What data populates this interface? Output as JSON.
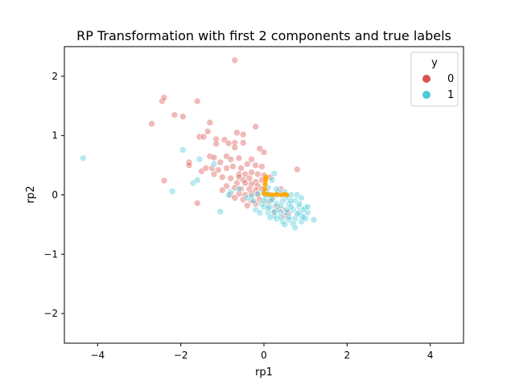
{
  "chart_data": {
    "type": "scatter",
    "title": "RP Transformation with first 2 components and true labels",
    "xlabel": "rp1",
    "ylabel": "rp2",
    "xlim": [
      -4.8,
      4.8
    ],
    "ylim": [
      -2.5,
      2.5
    ],
    "xticks": [
      -4,
      -2,
      0,
      2,
      4
    ],
    "yticks": [
      -2,
      -1,
      0,
      1,
      2
    ],
    "xtick_labels": [
      "−4",
      "−2",
      "0",
      "2",
      "4"
    ],
    "ytick_labels": [
      "−2",
      "−1",
      "0",
      "1",
      "2"
    ],
    "grid": false,
    "legend": {
      "title": "y",
      "placement": "top-right"
    },
    "series": [
      {
        "name": "0",
        "color": "#d9534f",
        "points": [
          [
            -0.7,
            2.27
          ],
          [
            -2.45,
            1.58
          ],
          [
            -2.4,
            1.64
          ],
          [
            -2.15,
            1.35
          ],
          [
            -1.95,
            1.32
          ],
          [
            -1.6,
            1.58
          ],
          [
            -2.7,
            1.2
          ],
          [
            -1.3,
            1.22
          ],
          [
            -1.35,
            1.07
          ],
          [
            -0.65,
            1.05
          ],
          [
            -0.5,
            1.02
          ],
          [
            -0.2,
            1.15
          ],
          [
            -1.55,
            0.98
          ],
          [
            -1.45,
            0.98
          ],
          [
            -1.15,
            0.94
          ],
          [
            -1.15,
            0.86
          ],
          [
            -0.95,
            0.93
          ],
          [
            -0.85,
            0.87
          ],
          [
            -0.7,
            0.88
          ],
          [
            -0.5,
            0.88
          ],
          [
            -0.7,
            0.8
          ],
          [
            -0.1,
            0.78
          ],
          [
            0.0,
            0.72
          ],
          [
            -1.3,
            0.65
          ],
          [
            -1.2,
            0.63
          ],
          [
            -0.9,
            0.65
          ],
          [
            -1.05,
            0.55
          ],
          [
            -0.8,
            0.6
          ],
          [
            -0.6,
            0.62
          ],
          [
            -0.3,
            0.6
          ],
          [
            -1.8,
            0.55
          ],
          [
            -1.8,
            0.5
          ],
          [
            -1.5,
            0.4
          ],
          [
            -1.4,
            0.45
          ],
          [
            -1.25,
            0.45
          ],
          [
            -1.1,
            0.42
          ],
          [
            -0.9,
            0.45
          ],
          [
            -0.75,
            0.48
          ],
          [
            -0.55,
            0.45
          ],
          [
            -0.4,
            0.52
          ],
          [
            -0.2,
            0.5
          ],
          [
            -0.05,
            0.48
          ],
          [
            -0.6,
            0.35
          ],
          [
            -0.45,
            0.35
          ],
          [
            -0.3,
            0.38
          ],
          [
            -0.15,
            0.35
          ],
          [
            0.0,
            0.33
          ],
          [
            0.15,
            0.3
          ],
          [
            -1.2,
            0.35
          ],
          [
            -1.0,
            0.3
          ],
          [
            -0.8,
            0.28
          ],
          [
            -0.6,
            0.3
          ],
          [
            -0.5,
            0.25
          ],
          [
            -0.35,
            0.28
          ],
          [
            -0.2,
            0.22
          ],
          [
            -0.05,
            0.25
          ],
          [
            -0.65,
            0.2
          ],
          [
            -0.45,
            0.2
          ],
          [
            -0.3,
            0.18
          ],
          [
            -0.15,
            0.15
          ],
          [
            -0.9,
            0.15
          ],
          [
            -0.7,
            0.12
          ],
          [
            -0.55,
            0.1
          ],
          [
            -0.35,
            0.1
          ],
          [
            -0.2,
            0.08
          ],
          [
            -0.05,
            0.1
          ],
          [
            -0.8,
            0.0
          ],
          [
            -0.6,
            0.02
          ],
          [
            -0.45,
            0.0
          ],
          [
            -0.3,
            0.02
          ],
          [
            -0.15,
            0.0
          ],
          [
            0.05,
            0.05
          ],
          [
            -0.5,
            -0.08
          ],
          [
            -0.3,
            -0.1
          ],
          [
            -0.1,
            -0.08
          ],
          [
            -0.4,
            -0.18
          ],
          [
            -0.2,
            -0.15
          ],
          [
            0.1,
            -0.12
          ],
          [
            0.3,
            -0.2
          ],
          [
            0.45,
            -0.25
          ],
          [
            0.6,
            -0.3
          ],
          [
            0.25,
            -0.3
          ],
          [
            0.5,
            -0.35
          ],
          [
            -1.6,
            -0.14
          ],
          [
            -2.4,
            0.24
          ],
          [
            0.8,
            0.43
          ],
          [
            -1.0,
            0.08
          ],
          [
            -0.7,
            -0.05
          ],
          [
            0.2,
            -0.05
          ],
          [
            0.4,
            0.1
          ]
        ]
      },
      {
        "name": "1",
        "color": "#4cc9d6",
        "points": [
          [
            -4.35,
            0.62
          ],
          [
            -1.95,
            0.76
          ],
          [
            -1.7,
            0.2
          ],
          [
            -1.6,
            0.25
          ],
          [
            -1.55,
            0.6
          ],
          [
            -2.2,
            0.06
          ],
          [
            -1.2,
            0.52
          ],
          [
            -1.05,
            -0.28
          ],
          [
            -0.8,
            0.05
          ],
          [
            -0.85,
            0.0
          ],
          [
            -0.6,
            0.1
          ],
          [
            -0.4,
            -0.05
          ],
          [
            -0.2,
            -0.25
          ],
          [
            0.25,
            0.36
          ],
          [
            0.2,
            0.25
          ],
          [
            0.1,
            0.12
          ],
          [
            0.0,
            0.05
          ],
          [
            0.05,
            -0.05
          ],
          [
            -0.05,
            -0.15
          ],
          [
            0.15,
            -0.1
          ],
          [
            0.3,
            0.0
          ],
          [
            0.35,
            0.05
          ],
          [
            0.5,
            0.05
          ],
          [
            0.55,
            -0.05
          ],
          [
            0.65,
            0.0
          ],
          [
            0.8,
            0.0
          ],
          [
            0.9,
            -0.05
          ],
          [
            0.75,
            -0.1
          ],
          [
            0.6,
            -0.15
          ],
          [
            0.45,
            -0.1
          ],
          [
            0.3,
            -0.15
          ],
          [
            0.15,
            -0.2
          ],
          [
            0.0,
            -0.2
          ],
          [
            -0.1,
            -0.3
          ],
          [
            0.1,
            -0.3
          ],
          [
            0.25,
            -0.35
          ],
          [
            0.4,
            -0.3
          ],
          [
            0.55,
            -0.3
          ],
          [
            0.7,
            -0.25
          ],
          [
            0.85,
            -0.2
          ],
          [
            1.0,
            -0.22
          ],
          [
            1.05,
            -0.3
          ],
          [
            0.9,
            -0.35
          ],
          [
            0.75,
            -0.4
          ],
          [
            0.6,
            -0.42
          ],
          [
            0.45,
            -0.45
          ],
          [
            0.3,
            -0.4
          ],
          [
            0.15,
            -0.38
          ],
          [
            0.5,
            -0.5
          ],
          [
            0.7,
            -0.48
          ],
          [
            0.9,
            -0.45
          ],
          [
            1.0,
            -0.4
          ],
          [
            1.2,
            -0.42
          ],
          [
            0.75,
            -0.55
          ],
          [
            0.85,
            -0.3
          ],
          [
            0.95,
            -0.25
          ],
          [
            0.65,
            -0.2
          ],
          [
            0.35,
            -0.25
          ],
          [
            0.2,
            -0.08
          ],
          [
            0.05,
            0.0
          ],
          [
            -0.15,
            0.02
          ],
          [
            -0.25,
            -0.1
          ],
          [
            -0.3,
            -0.02
          ],
          [
            0.4,
            -0.18
          ],
          [
            0.55,
            -0.25
          ],
          [
            0.8,
            -0.32
          ],
          [
            0.95,
            -0.38
          ],
          [
            0.6,
            -0.38
          ],
          [
            0.4,
            -0.38
          ],
          [
            0.25,
            -0.28
          ],
          [
            0.1,
            -0.22
          ],
          [
            0.0,
            -0.1
          ],
          [
            0.3,
            0.1
          ],
          [
            0.15,
            0.0
          ],
          [
            0.45,
            0.0
          ],
          [
            0.65,
            -0.1
          ],
          [
            0.85,
            -0.15
          ],
          [
            1.05,
            -0.2
          ]
        ]
      },
      {
        "name": "",
        "color": "#ffa500",
        "points": [
          [
            0.0,
            0.02
          ],
          [
            0.02,
            0.1
          ],
          [
            0.03,
            0.18
          ],
          [
            0.04,
            0.25
          ],
          [
            0.05,
            0.3
          ],
          [
            0.1,
            0.01
          ],
          [
            0.2,
            0.0
          ],
          [
            0.3,
            0.01
          ],
          [
            0.4,
            0.0
          ],
          [
            0.5,
            0.01
          ],
          [
            0.55,
            0.0
          ]
        ]
      }
    ]
  }
}
